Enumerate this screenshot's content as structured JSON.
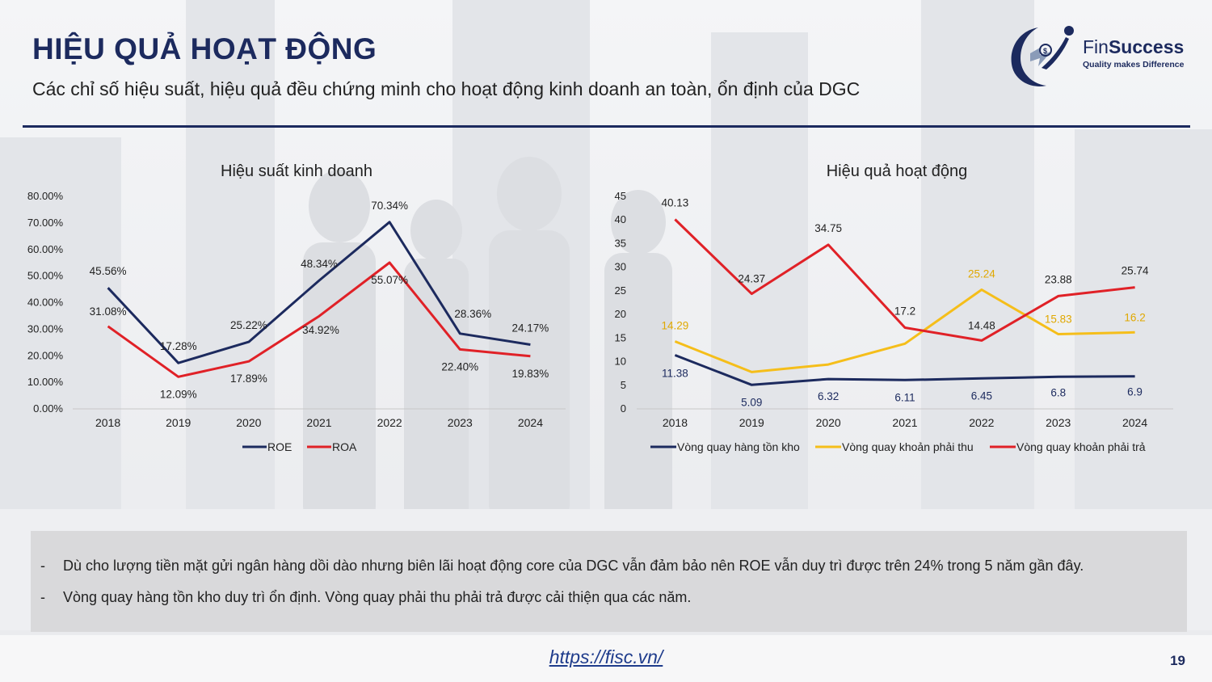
{
  "header": {
    "title": "HIỆU QUẢ HOẠT ĐỘNG",
    "subtitle": "Các chỉ số hiệu suất, hiệu quả đều chứng minh cho hoạt động kinh doanh an toàn, ổn định của DGC"
  },
  "logo": {
    "name_prefix": "Fin",
    "name_suffix": "Success",
    "tagline": "Quality makes Difference"
  },
  "colors": {
    "navy": "#1c2a5e",
    "red": "#e02127",
    "yellow": "#f5be1a"
  },
  "chart_data": [
    {
      "type": "line",
      "title": "Hiệu suất kinh doanh",
      "categories": [
        "2018",
        "2019",
        "2020",
        "2021",
        "2022",
        "2023",
        "2024"
      ],
      "ylim": [
        0,
        80
      ],
      "yticks": [
        "0.00%",
        "10.00%",
        "20.00%",
        "30.00%",
        "40.00%",
        "50.00%",
        "60.00%",
        "70.00%",
        "80.00%"
      ],
      "series": [
        {
          "name": "ROE",
          "color": "#1c2a5e",
          "values": [
            45.56,
            17.28,
            25.22,
            48.34,
            70.34,
            28.36,
            24.17
          ],
          "labels": [
            "45.56%",
            "17.28%",
            "25.22%",
            "48.34%",
            "70.34%",
            "28.36%",
            "24.17%"
          ]
        },
        {
          "name": "ROA",
          "color": "#e02127",
          "values": [
            31.08,
            12.09,
            17.89,
            34.92,
            55.07,
            22.4,
            19.83
          ],
          "labels": [
            "31.08%",
            "12.09%",
            "17.89%",
            "34.92%",
            "55.07%",
            "22.40%",
            "19.83%"
          ]
        }
      ]
    },
    {
      "type": "line",
      "title": "Hiệu quả hoạt động",
      "categories": [
        "2018",
        "2019",
        "2020",
        "2021",
        "2022",
        "2023",
        "2024"
      ],
      "ylim": [
        0,
        45
      ],
      "yticks": [
        "0",
        "5",
        "10",
        "15",
        "20",
        "25",
        "30",
        "35",
        "40",
        "45"
      ],
      "series": [
        {
          "name": "Vòng quay hàng tồn kho",
          "color": "#1c2a5e",
          "values": [
            11.38,
            5.09,
            6.32,
            6.11,
            6.45,
            6.8,
            6.9
          ],
          "labels": [
            "11.38",
            "5.09",
            "6.32",
            "6.11",
            "6.45",
            "6.8",
            "6.9"
          ]
        },
        {
          "name": "Vòng quay khoản phải thu",
          "color": "#f5be1a",
          "values": [
            14.29,
            7.8,
            9.4,
            13.8,
            25.24,
            15.83,
            16.2
          ],
          "labels": [
            "14.29",
            "",
            "",
            "",
            "25.24",
            "15.83",
            "16.2"
          ]
        },
        {
          "name": "Vòng quay khoản phải trả",
          "color": "#e02127",
          "values": [
            40.13,
            24.37,
            34.75,
            17.2,
            14.48,
            23.88,
            25.74
          ],
          "labels": [
            "40.13",
            "24.37",
            "34.75",
            "17.2",
            "14.48",
            "23.88",
            "25.74"
          ]
        }
      ]
    }
  ],
  "notes": [
    "Dù cho lượng tiền mặt gửi ngân hàng dồi dào nhưng biên lãi hoạt động core của DGC vẫn đảm bảo nên ROE vẫn duy trì được trên 24% trong 5 năm gần đây.",
    "Vòng quay hàng tồn kho duy trì ổn định. Vòng quay phải thu phải trả được cải thiện qua các năm."
  ],
  "note_bullet": "-",
  "footer": {
    "link": "https://fisc.vn/",
    "page": "19"
  }
}
